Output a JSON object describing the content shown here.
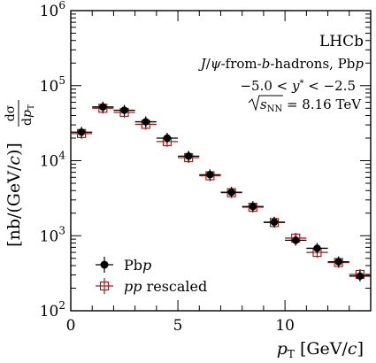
{
  "chart_data": {
    "type": "scatter",
    "ylog": true,
    "xlim": [
      0,
      14
    ],
    "ylim": [
      100,
      1000000
    ],
    "x_ticks": [
      0,
      5,
      10
    ],
    "x_tick_labels": [
      "0",
      "5",
      "10"
    ],
    "y_ticks": [
      100,
      1000,
      10000,
      100000,
      1000000
    ],
    "y_tick_labels": [
      {
        "base": "10",
        "exp": "2"
      },
      {
        "base": "10",
        "exp": "3"
      },
      {
        "base": "10",
        "exp": "4"
      },
      {
        "base": "10",
        "exp": "5"
      },
      {
        "base": "10",
        "exp": "6"
      }
    ],
    "xlabel": "p_T [GeV/c]",
    "ylabel": "dσ/dp_T [nb/(GeV/c)]",
    "annotations": [
      "LHCb",
      "J/ψ-from-b-hadrons, Pbp",
      "−5.0 < y* < −2.5",
      "√sNN = 8.16 TeV"
    ],
    "legend_position": "bottom-left",
    "series": [
      {
        "name": "Pbp",
        "marker": "filled-circle",
        "color": "#000000",
        "points": [
          {
            "x": 0.5,
            "xerr": 0.5,
            "y": 24000
          },
          {
            "x": 1.5,
            "xerr": 0.5,
            "y": 52000
          },
          {
            "x": 2.5,
            "xerr": 0.5,
            "y": 47000
          },
          {
            "x": 3.5,
            "xerr": 0.5,
            "y": 33000
          },
          {
            "x": 4.5,
            "xerr": 0.5,
            "y": 20000
          },
          {
            "x": 5.5,
            "xerr": 0.5,
            "y": 11500
          },
          {
            "x": 6.5,
            "xerr": 0.5,
            "y": 6500
          },
          {
            "x": 7.5,
            "xerr": 0.5,
            "y": 3800
          },
          {
            "x": 8.5,
            "xerr": 0.5,
            "y": 2450
          },
          {
            "x": 9.5,
            "xerr": 0.5,
            "y": 1520
          },
          {
            "x": 10.5,
            "xerr": 0.5,
            "y": 870
          },
          {
            "x": 11.5,
            "xerr": 0.5,
            "y": 680
          },
          {
            "x": 12.5,
            "xerr": 0.5,
            "y": 450
          },
          {
            "x": 13.5,
            "xerr": 0.5,
            "y": 290
          }
        ]
      },
      {
        "name": "pp rescaled",
        "marker": "open-square-cross",
        "color": "#a02020",
        "points": [
          {
            "x": 0.5,
            "xerr": 0.5,
            "y": 23000
          },
          {
            "x": 1.5,
            "xerr": 0.5,
            "y": 50000
          },
          {
            "x": 2.5,
            "xerr": 0.5,
            "y": 44000
          },
          {
            "x": 3.5,
            "xerr": 0.5,
            "y": 30500
          },
          {
            "x": 4.5,
            "xerr": 0.5,
            "y": 18000
          },
          {
            "x": 5.5,
            "xerr": 0.5,
            "y": 11000
          },
          {
            "x": 6.5,
            "xerr": 0.5,
            "y": 6300
          },
          {
            "x": 7.5,
            "xerr": 0.5,
            "y": 3750
          },
          {
            "x": 8.5,
            "xerr": 0.5,
            "y": 2400
          },
          {
            "x": 9.5,
            "xerr": 0.5,
            "y": 1500
          },
          {
            "x": 10.5,
            "xerr": 0.5,
            "y": 930
          },
          {
            "x": 11.5,
            "xerr": 0.5,
            "y": 600
          },
          {
            "x": 12.5,
            "xerr": 0.5,
            "y": 440
          },
          {
            "x": 13.5,
            "xerr": 0.5,
            "y": 305
          }
        ]
      }
    ]
  }
}
